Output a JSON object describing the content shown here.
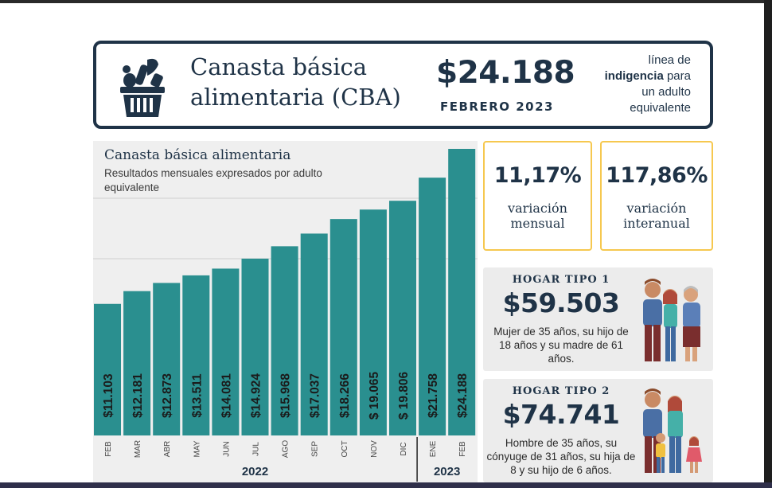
{
  "header": {
    "title": "Canasta básica\nalimentaria (CBA)",
    "amount": "$24.188",
    "month": "FEBRERO 2023",
    "note_line1": "línea de",
    "note_bold": "indigencia",
    "note_line2_rest": " para",
    "note_line3": "un adulto",
    "note_line4": "equivalente"
  },
  "chart_data": {
    "type": "bar",
    "title": "Canasta básica alimentaria",
    "subtitle": "Resultados mensuales expresados por adulto equivalente",
    "categories": [
      "FEB",
      "MAR",
      "ABR",
      "MAY",
      "JUN",
      "JUL",
      "AGO",
      "SEP",
      "OCT",
      "NOV",
      "DIC",
      "ENE",
      "FEB"
    ],
    "values": [
      11103,
      12181,
      12873,
      13511,
      14081,
      14924,
      15968,
      17037,
      18266,
      19065,
      19806,
      21758,
      24188
    ],
    "labels": [
      "$11.103",
      "$12.181",
      "$12.873",
      "$13.511",
      "$14.081",
      "$14.924",
      "$15.968",
      "$17.037",
      "$18.266",
      "$ 19.065",
      "$ 19.806",
      "$21.758",
      "$24.188"
    ],
    "years": [
      {
        "label": "2022",
        "from": 0,
        "to": 10
      },
      {
        "label": "2023",
        "from": 11,
        "to": 12
      }
    ],
    "ylim": [
      0,
      24188
    ],
    "grid": true,
    "bar_color": "#2a8f8f"
  },
  "stats": {
    "mensual_value": "11,17%",
    "mensual_label": "variación\nmensual",
    "interanual_value": "117,86%",
    "interanual_label": "variación\ninteranual",
    "border_color": "#f6c84f"
  },
  "hogar1": {
    "title": "HOGAR TIPO 1",
    "amount": "$59.503",
    "description": "Mujer de 35 años, su hijo de 18 años y su madre de 61 años.",
    "illustration_icon": "family-three-adults-icon"
  },
  "hogar2": {
    "title": "HOGAR TIPO 2",
    "amount": "$74.741",
    "description": "Hombre de 35 años, su cónyuge de 31 años, su hija de 8 y su hijo de 6 años.",
    "illustration_icon": "family-parents-children-icon"
  }
}
